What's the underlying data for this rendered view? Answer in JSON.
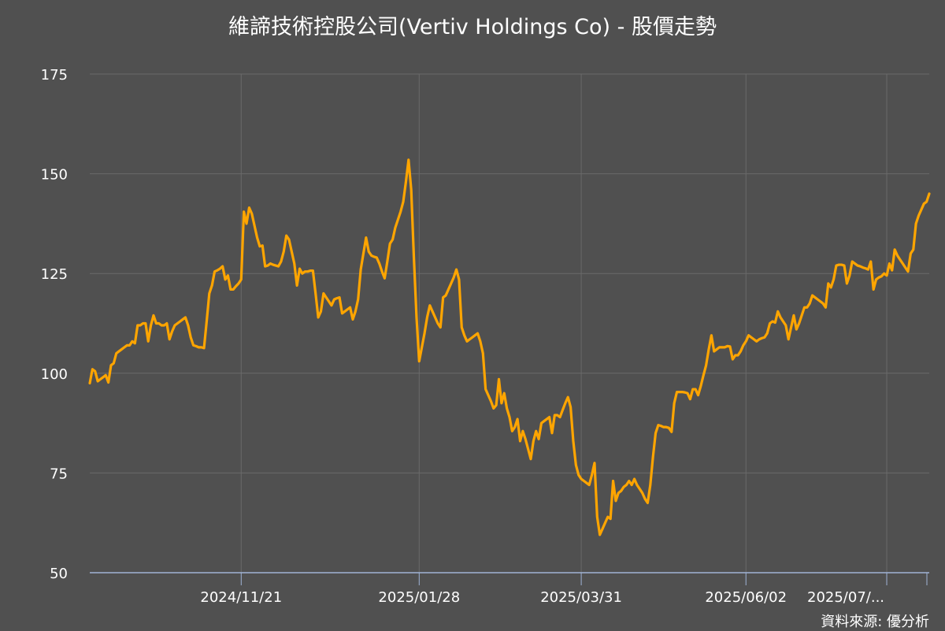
{
  "chart": {
    "title": "維諦技術控股公司(Vertiv Holdings Co) - 股價走勢",
    "source": "資料來源: 優分析"
  },
  "colors": {
    "background": "#505050",
    "grid": "#6a6a6a",
    "axis": "#9fb3d6",
    "line": "#FFA500",
    "text": "#ffffff"
  },
  "chart_data": {
    "type": "line",
    "title": "維諦技術控股公司(Vertiv Holdings Co) - 股價走勢",
    "xlabel": "",
    "ylabel": "",
    "ylim": [
      50,
      175
    ],
    "yticks": [
      50,
      75,
      100,
      125,
      150,
      175
    ],
    "xticks": [
      "2024/11/21",
      "2025/01/28",
      "2025/03/31",
      "2025/06/02",
      "2025/07/..."
    ],
    "xtick_index": [
      57,
      124,
      185,
      247,
      300
    ],
    "grid": true,
    "legend": "none",
    "series": [
      {
        "name": "",
        "values": [
          97.5,
          101,
          100.5,
          98,
          98.5,
          99,
          99.5,
          97.7,
          102,
          102.5,
          105,
          105.5,
          106,
          106.5,
          107,
          107,
          108,
          107.5,
          112,
          112,
          112.5,
          112.5,
          108,
          112,
          114.5,
          112.5,
          112.5,
          112,
          112,
          112.5,
          108.5,
          110.5,
          112,
          112.5,
          113,
          113.5,
          114,
          112,
          109,
          107,
          106.8,
          106.5,
          106.5,
          106.3,
          113,
          120,
          122,
          125.5,
          125.8,
          126.2,
          126.8,
          123.5,
          124.5,
          121,
          121,
          121.8,
          122.5,
          123.5,
          140.5,
          137.5,
          141.5,
          140,
          137,
          134,
          131.8,
          132,
          126.8,
          127,
          127.5,
          127.2,
          127,
          126.8,
          128,
          130.5,
          134.5,
          133.5,
          130.5,
          127.5,
          122,
          126.2,
          125,
          125.5,
          125.5,
          125.7,
          125.7,
          120,
          114,
          115.5,
          120,
          119,
          118,
          117,
          118.5,
          118.8,
          119,
          115,
          115.5,
          116,
          116.5,
          113.5,
          115.5,
          118.5,
          126,
          130,
          134,
          130.5,
          129.5,
          129.2,
          129,
          127.5,
          125.5,
          123.8,
          128,
          132.5,
          133.5,
          136.5,
          138.5,
          140.5,
          143,
          148,
          153.5,
          146,
          129,
          114,
          103,
          106.5,
          110,
          114,
          117,
          115.5,
          114,
          112.5,
          111.5,
          119,
          119.5,
          121,
          122.5,
          124,
          126,
          123.5,
          111.5,
          109.5,
          108,
          108.5,
          109,
          109.5,
          110,
          108,
          105,
          96,
          94.5,
          93,
          91.2,
          92,
          98.5,
          92.5,
          95,
          91.2,
          89,
          85.5,
          86.5,
          88.5,
          83,
          85.5,
          83.5,
          81,
          78.5,
          83,
          85.5,
          83.5,
          87.5,
          88,
          88.5,
          89,
          85,
          89.5,
          89.5,
          89,
          90.8,
          92.5,
          94,
          91.5,
          83,
          77,
          74.5,
          73.5,
          73,
          72.5,
          72,
          74.5,
          77.5,
          64,
          59.5,
          61,
          62.5,
          64,
          63.5,
          73,
          68,
          70,
          70.5,
          71.5,
          72,
          73,
          72,
          73.5,
          72,
          71,
          70,
          68.5,
          67.5,
          72,
          79,
          85,
          87,
          86.8,
          86.5,
          86.5,
          86.3,
          85.3,
          92.5,
          95.3,
          95.3,
          95.3,
          95.2,
          95,
          93.5,
          96,
          96,
          94.5,
          96.8,
          99.5,
          102,
          106,
          109.5,
          105.5,
          106,
          106.5,
          106.5,
          106.5,
          106.8,
          106.7,
          103.5,
          104.5,
          104.5,
          105.5,
          107,
          108,
          109.5,
          109,
          108.5,
          108,
          108.5,
          108.8,
          109,
          110,
          112.5,
          113,
          112.7,
          115.5,
          114,
          113,
          112,
          108.5,
          111.5,
          114.5,
          111,
          112.5,
          114.5,
          116.5,
          116.5,
          117.5,
          119.5,
          119,
          118.5,
          118,
          117.5,
          116.5,
          122.5,
          121.5,
          123.5,
          127,
          127.2,
          127.2,
          127,
          122.5,
          124.5,
          128,
          127.5,
          127,
          126.8,
          126.5,
          126.3,
          126,
          128,
          121,
          123.5,
          124,
          124.3,
          125,
          124.5,
          127.5,
          125.8,
          131,
          129.5,
          128.5,
          127.5,
          126.5,
          125.5,
          130,
          131,
          137.5,
          139.5,
          141,
          142.5,
          143,
          145
        ]
      }
    ]
  }
}
